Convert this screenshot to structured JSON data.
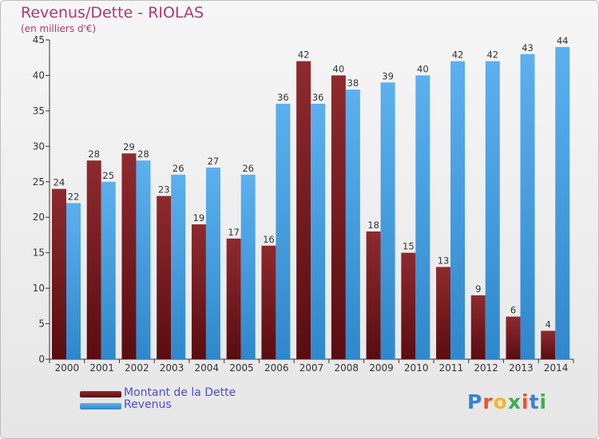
{
  "title": "Revenus/Dette - RIOLAS",
  "subtitle": "(en milliers d'€)",
  "colors": {
    "debt": "#7b1a1e",
    "revenue": "#3f9de2",
    "title": "#b03a6a",
    "legend_text": "#4d4dd8"
  },
  "logo": {
    "text": "Proxiti"
  },
  "chart_data": {
    "type": "bar",
    "categories": [
      "2000",
      "2001",
      "2002",
      "2003",
      "2004",
      "2005",
      "2006",
      "2007",
      "2008",
      "2009",
      "2010",
      "2011",
      "2012",
      "2013",
      "2014"
    ],
    "series": [
      {
        "name": "Montant de la Dette",
        "values": [
          24,
          28,
          29,
          23,
          19,
          17,
          16,
          42,
          40,
          18,
          15,
          13,
          9,
          6,
          4
        ]
      },
      {
        "name": "Revenus",
        "values": [
          22,
          25,
          28,
          26,
          27,
          26,
          36,
          36,
          38,
          39,
          40,
          42,
          42,
          43,
          44
        ]
      }
    ],
    "title": "Revenus/Dette - RIOLAS",
    "ylim": [
      0,
      45
    ],
    "yticks": [
      0,
      5,
      10,
      15,
      20,
      25,
      30,
      35,
      40,
      45
    ],
    "grid": false,
    "legend": "bottom-left"
  }
}
